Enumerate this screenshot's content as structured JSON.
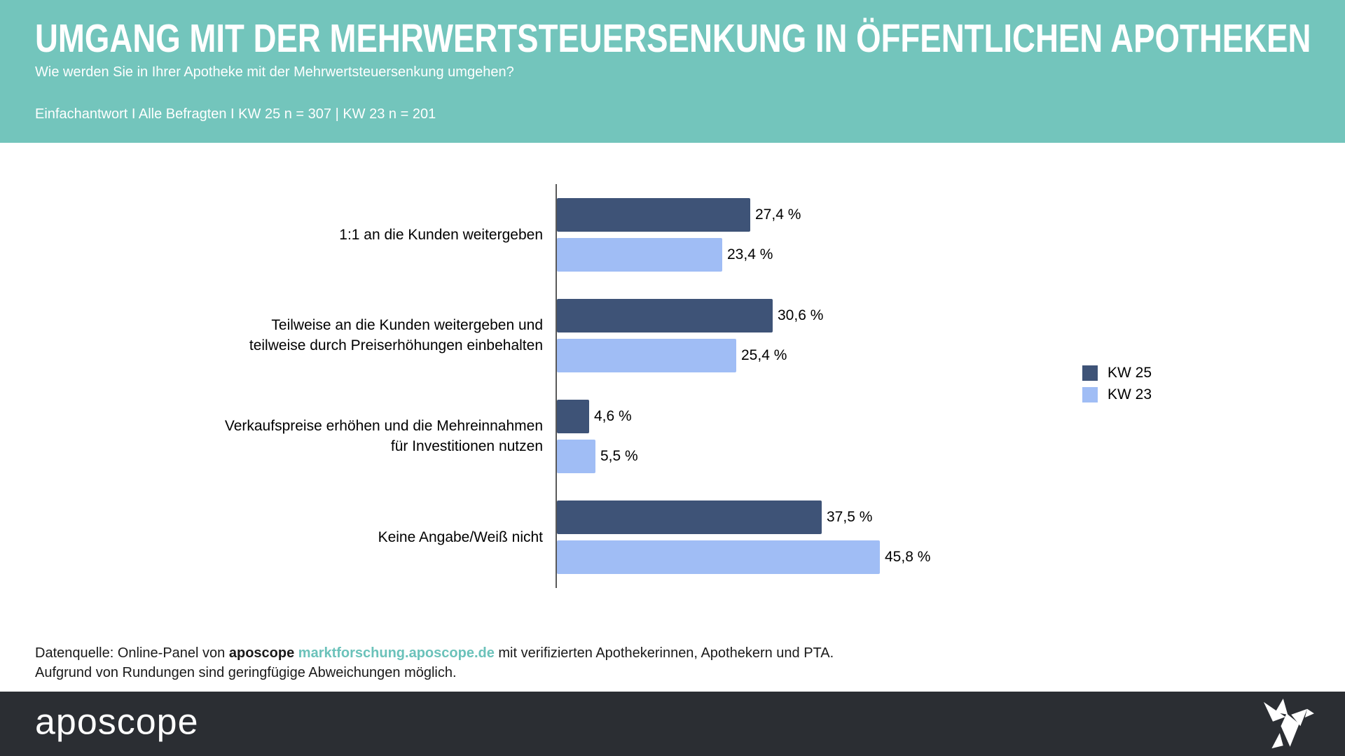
{
  "header": {
    "title": "UMGANG MIT DER MEHRWERTSTEUERSENKUNG IN ÖFFENTLICHEN APOTHEKEN",
    "subtitle": "Wie werden Sie in Ihrer Apotheke mit der Mehrwertsteuersenkung umgehen?",
    "meta": "Einfachantwort I Alle Befragten I KW 25 n = 307 | KW 23 n = 201",
    "background_color": "#73c5bc"
  },
  "chart_data": {
    "type": "bar",
    "orientation": "horizontal",
    "unit": "%",
    "xlim": [
      0,
      50
    ],
    "grid": false,
    "legend_position": "right",
    "categories": [
      [
        "1:1 an die Kunden weitergeben"
      ],
      [
        "Teilweise an die Kunden weitergeben und",
        "teilweise durch Preiserhöhungen einbehalten"
      ],
      [
        "Verkaufspreise erhöhen und die Mehreinnahmen",
        "für Investitionen nutzen"
      ],
      [
        "Keine Angabe/Weiß nicht"
      ]
    ],
    "series": [
      {
        "name": "KW 25",
        "color": "#3e5377",
        "values": [
          27.4,
          30.6,
          4.6,
          37.5
        ],
        "labels": [
          "27,4 %",
          "30,6 %",
          "4,6 %",
          "37,5 %"
        ]
      },
      {
        "name": "KW 23",
        "color": "#a0bdf5",
        "values": [
          23.4,
          25.4,
          5.5,
          45.8
        ],
        "labels": [
          "23,4 %",
          "25,4 %",
          "5,5 %",
          "45,8 %"
        ]
      }
    ]
  },
  "footnote": {
    "part1": "Datenquelle: Online-Panel von ",
    "brand": "aposcope",
    "link": "marktforschung.aposcope.de",
    "part2": " mit verifizierten Apothekerinnen, Apothekern und PTA.",
    "line2": "Aufgrund von Rundungen sind geringfügige Abweichungen möglich.",
    "link_color": "#6bc2ba"
  },
  "footer": {
    "logo_text": "aposcope",
    "background_color": "#2b2e33",
    "icon": "origami-bird-icon"
  },
  "colors": {
    "kw25_bar": "#3e5377",
    "kw23_bar": "#a0bdf5",
    "header_teal": "#73c5bc",
    "footer_charcoal": "#2b2e33",
    "axis_gray": "#595959"
  }
}
